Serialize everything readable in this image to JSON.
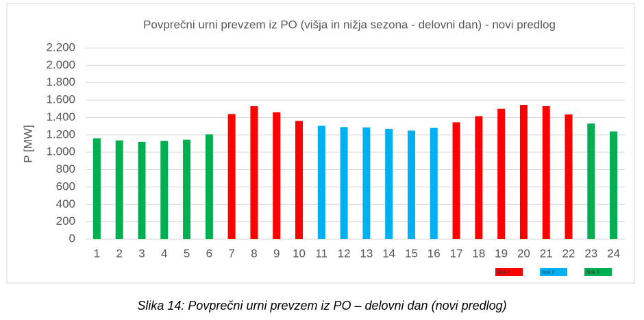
{
  "chart_data": {
    "type": "bar",
    "title": "Povprečni urni prevzem iz PO (višja in nižja sezona - delovni dan) - novi predlog",
    "y_label": "P [MW]",
    "categories": [
      "1",
      "2",
      "3",
      "4",
      "5",
      "6",
      "7",
      "8",
      "9",
      "10",
      "11",
      "12",
      "13",
      "14",
      "15",
      "16",
      "17",
      "18",
      "19",
      "20",
      "21",
      "22",
      "23",
      "24"
    ],
    "values": [
      1160,
      1135,
      1120,
      1130,
      1145,
      1205,
      1440,
      1530,
      1460,
      1360,
      1305,
      1290,
      1285,
      1270,
      1250,
      1280,
      1345,
      1415,
      1500,
      1545,
      1530,
      1435,
      1330,
      1240
    ],
    "colors": [
      "#00b050",
      "#00b050",
      "#00b050",
      "#00b050",
      "#00b050",
      "#00b050",
      "#ff0000",
      "#ff0000",
      "#ff0000",
      "#ff0000",
      "#00b0f0",
      "#00b0f0",
      "#00b0f0",
      "#00b0f0",
      "#00b0f0",
      "#00b0f0",
      "#ff0000",
      "#ff0000",
      "#ff0000",
      "#ff0000",
      "#ff0000",
      "#ff0000",
      "#00b050",
      "#00b050"
    ],
    "legend": [
      {
        "name": "blok 1",
        "color": "#ff0000"
      },
      {
        "name": "blok 2",
        "color": "#00b0f0"
      },
      {
        "name": "blok 3",
        "color": "#00b050"
      }
    ],
    "ylim": [
      0,
      2200
    ],
    "yticks": [
      0,
      200,
      400,
      600,
      800,
      {
        "value": 1000,
        "label": "1.000"
      },
      {
        "value": 1200,
        "label": "1.200"
      },
      {
        "value": 1400,
        "label": "1.400"
      },
      {
        "value": 1600,
        "label": "1.600"
      },
      {
        "value": 1800,
        "label": "1.800"
      },
      {
        "value": 2000,
        "label": "2.000"
      },
      {
        "value": 2200,
        "label": "2.200"
      }
    ],
    "grid": true
  },
  "caption": "Slika 14: Povprečni urni prevzem iz PO – delovni dan (novi predlog)"
}
